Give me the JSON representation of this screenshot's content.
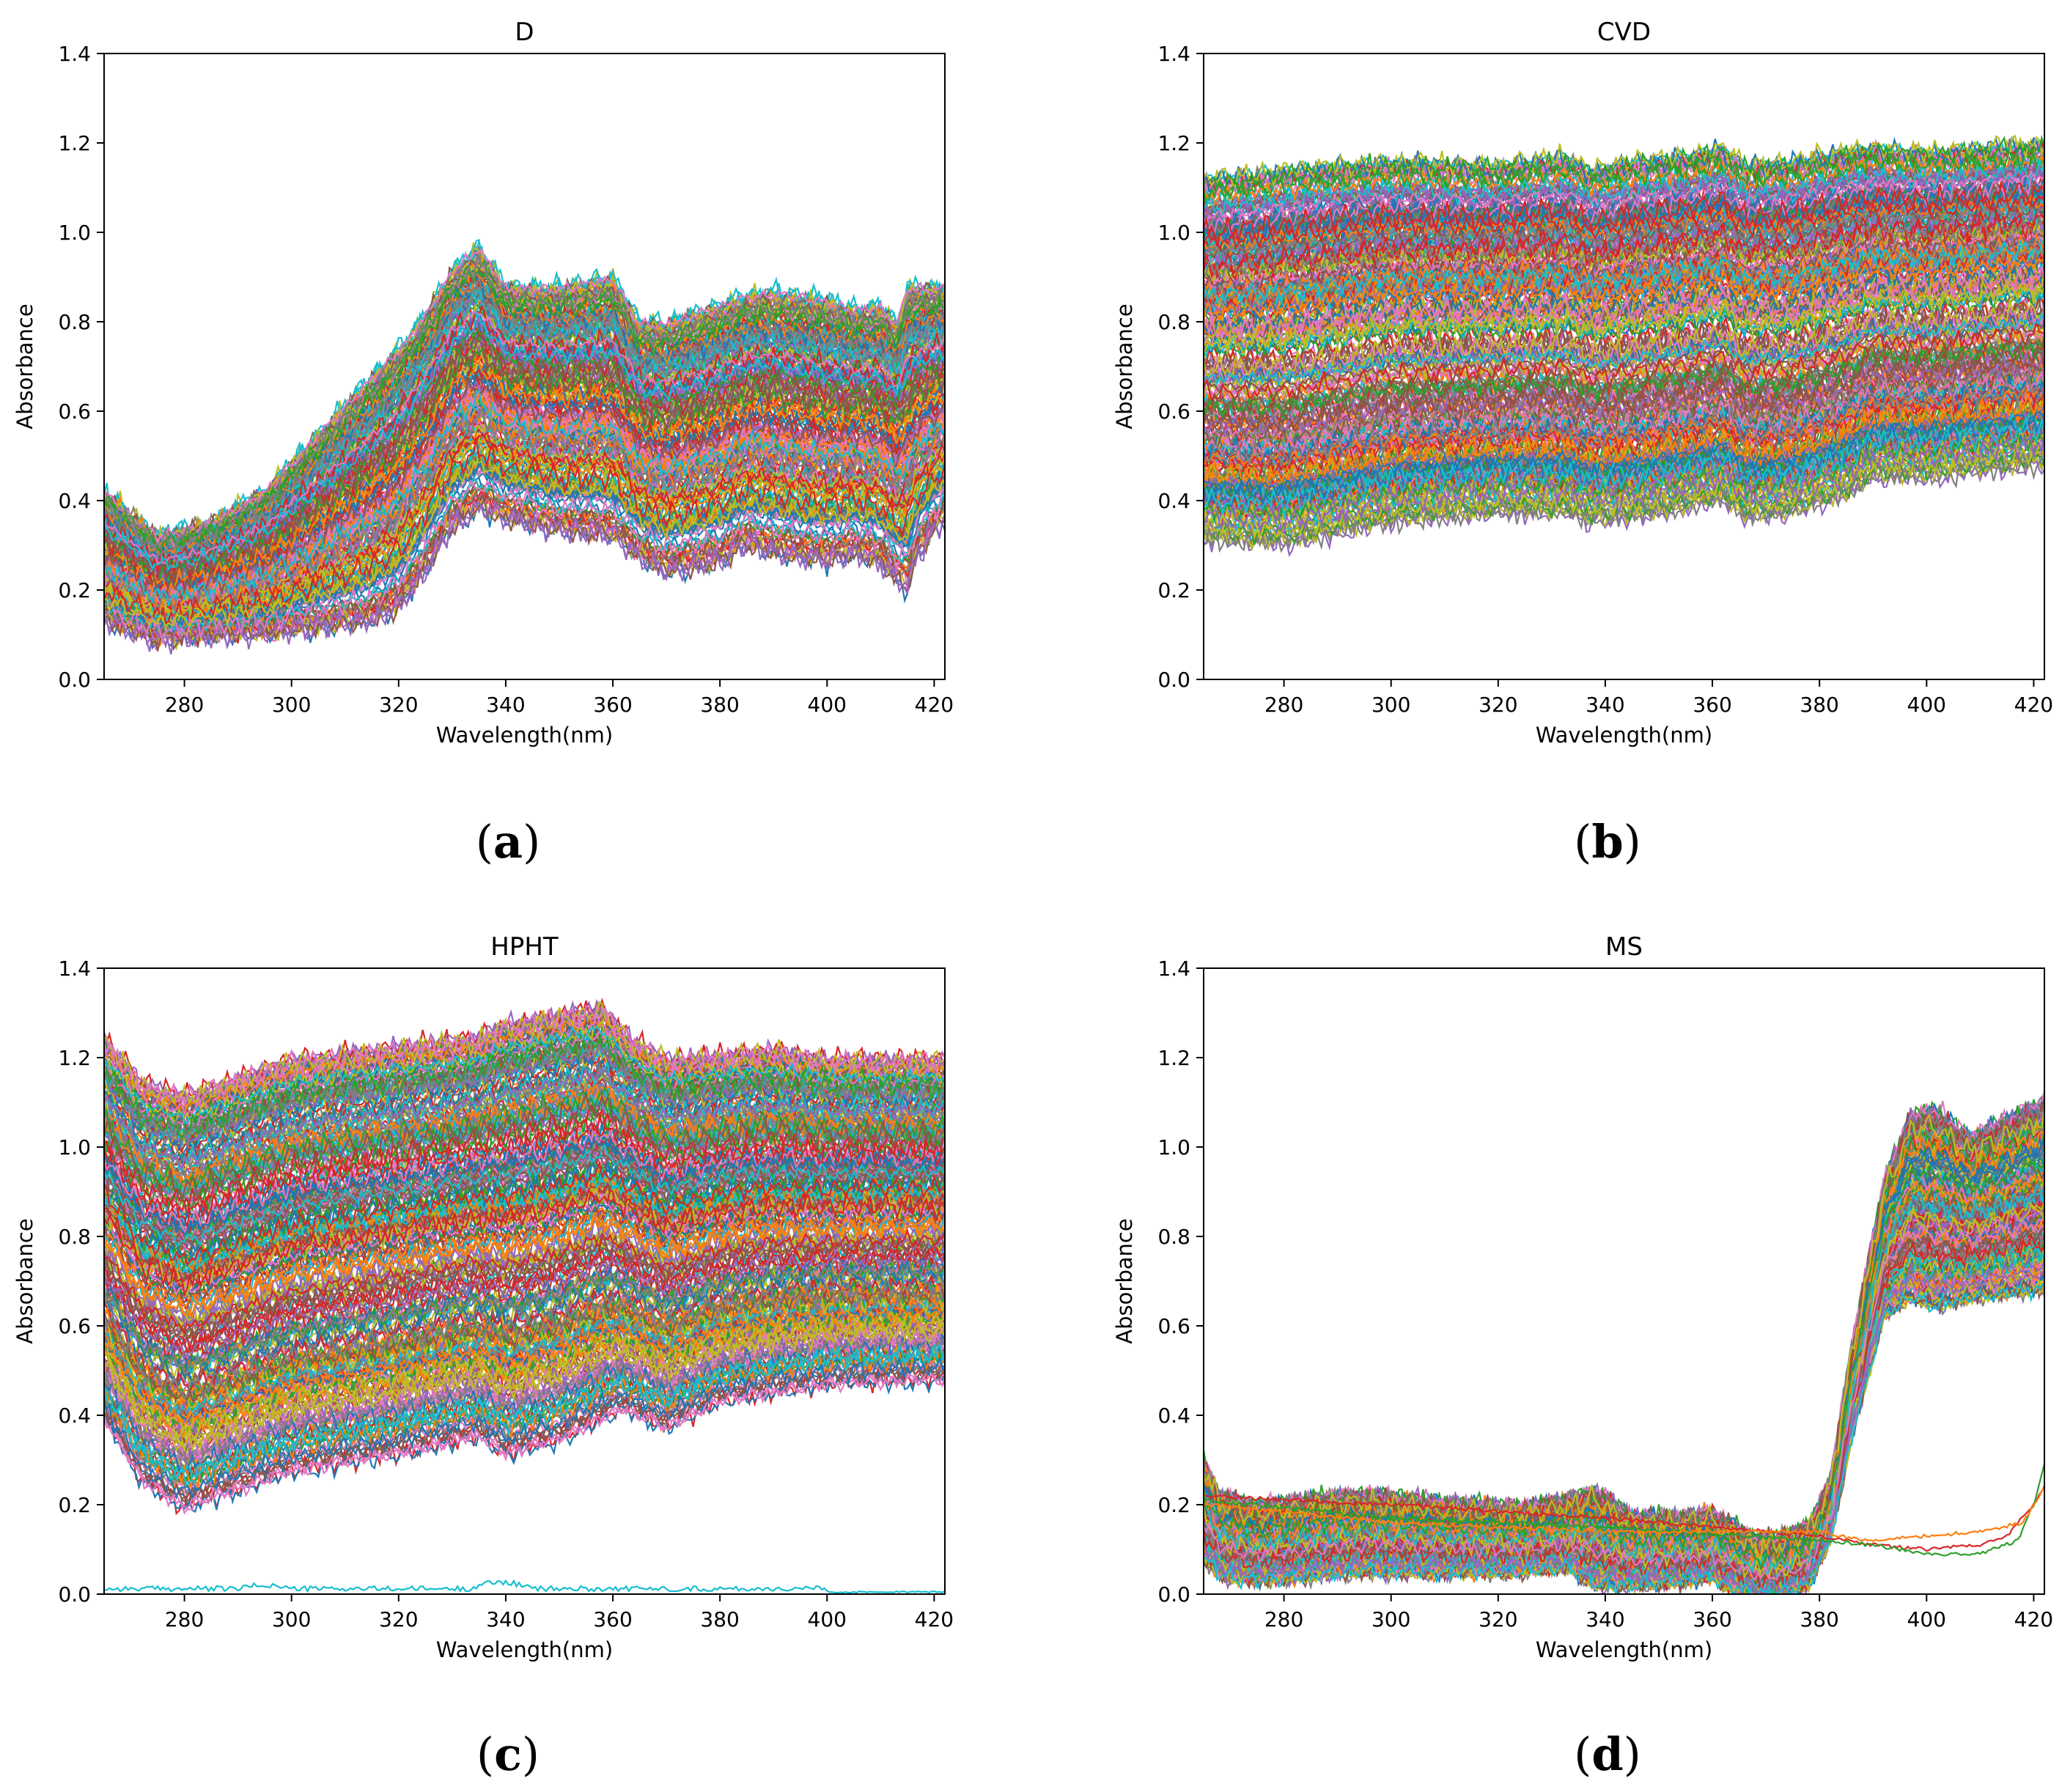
{
  "figure": {
    "colors": [
      "#1f77b4",
      "#ff7f0e",
      "#2ca02c",
      "#d62728",
      "#9467bd",
      "#8c564b",
      "#e377c2",
      "#7f7f7f",
      "#bcbd22",
      "#17becf"
    ]
  },
  "chart_data": [
    {
      "type": "line",
      "panel": "a",
      "caption_letter": "a",
      "title": "D",
      "xlabel": "Wavelength(nm)",
      "ylabel": "Absorbance",
      "xlim": [
        265,
        422
      ],
      "ylim": [
        0.0,
        1.4
      ],
      "xticks": [
        "280",
        "300",
        "320",
        "340",
        "360",
        "380",
        "400",
        "420"
      ],
      "yticks": [
        "0.0",
        "0.2",
        "0.4",
        "0.6",
        "0.8",
        "1.0",
        "1.2",
        "1.4"
      ],
      "series_count": 220,
      "profile": {
        "x": [
          265,
          275,
          285,
          295,
          305,
          315,
          320,
          325,
          330,
          335,
          340,
          350,
          360,
          365,
          370,
          380,
          385,
          390,
          400,
          405,
          410,
          413,
          415,
          417,
          422
        ],
        "low": [
          0.12,
          0.08,
          0.09,
          0.09,
          0.1,
          0.11,
          0.14,
          0.22,
          0.32,
          0.36,
          0.34,
          0.31,
          0.3,
          0.25,
          0.22,
          0.24,
          0.28,
          0.26,
          0.24,
          0.26,
          0.24,
          0.2,
          0.18,
          0.26,
          0.34
        ],
        "high": [
          0.42,
          0.32,
          0.35,
          0.42,
          0.55,
          0.68,
          0.74,
          0.82,
          0.92,
          0.97,
          0.88,
          0.88,
          0.9,
          0.8,
          0.8,
          0.84,
          0.86,
          0.87,
          0.85,
          0.83,
          0.84,
          0.8,
          0.88,
          0.88,
          0.88
        ]
      }
    },
    {
      "type": "line",
      "panel": "b",
      "caption_letter": "b",
      "title": "CVD",
      "xlabel": "Wavelength(nm)",
      "ylabel": "Absorbance",
      "xlim": [
        265,
        422
      ],
      "ylim": [
        0.0,
        1.4
      ],
      "xticks": [
        "280",
        "300",
        "320",
        "340",
        "360",
        "380",
        "400",
        "420"
      ],
      "yticks": [
        "0.0",
        "0.2",
        "0.4",
        "0.6",
        "0.8",
        "1.0",
        "1.2",
        "1.4"
      ],
      "series_count": 320,
      "profile": {
        "x": [
          265,
          280,
          300,
          320,
          333,
          337,
          345,
          355,
          362,
          366,
          375,
          385,
          390,
          400,
          422
        ],
        "low": [
          0.3,
          0.29,
          0.34,
          0.36,
          0.36,
          0.34,
          0.35,
          0.37,
          0.39,
          0.35,
          0.36,
          0.4,
          0.44,
          0.44,
          0.47
        ],
        "high": [
          1.12,
          1.14,
          1.16,
          1.15,
          1.17,
          1.14,
          1.16,
          1.17,
          1.19,
          1.15,
          1.16,
          1.18,
          1.19,
          1.18,
          1.2
        ]
      }
    },
    {
      "type": "line",
      "panel": "c",
      "caption_letter": "c",
      "title": "HPHT",
      "xlabel": "Wavelength(nm)",
      "ylabel": "Absorbance",
      "xlim": [
        265,
        422
      ],
      "ylim": [
        0.0,
        1.4
      ],
      "xticks": [
        "280",
        "300",
        "320",
        "340",
        "360",
        "380",
        "400",
        "420"
      ],
      "yticks": [
        "0.0",
        "0.2",
        "0.4",
        "0.6",
        "0.8",
        "1.0",
        "1.2",
        "1.4"
      ],
      "series_count": 300,
      "profile": {
        "x": [
          265,
          272,
          280,
          300,
          320,
          335,
          340,
          350,
          358,
          362,
          370,
          380,
          390,
          400,
          422
        ],
        "low": [
          0.38,
          0.24,
          0.18,
          0.26,
          0.3,
          0.34,
          0.3,
          0.33,
          0.38,
          0.4,
          0.36,
          0.42,
          0.44,
          0.46,
          0.47
        ],
        "high": [
          1.25,
          1.15,
          1.12,
          1.2,
          1.23,
          1.25,
          1.28,
          1.3,
          1.32,
          1.26,
          1.2,
          1.21,
          1.22,
          1.2,
          1.2
        ]
      }
    },
    {
      "type": "line",
      "panel": "d",
      "caption_letter": "d",
      "title": "MS",
      "xlabel": "Wavelength(nm)",
      "ylabel": "Absorbance",
      "xlim": [
        265,
        422
      ],
      "ylim": [
        0.0,
        1.4
      ],
      "xticks": [
        "280",
        "300",
        "320",
        "340",
        "360",
        "380",
        "400",
        "420"
      ],
      "yticks": [
        "0.0",
        "0.2",
        "0.4",
        "0.6",
        "0.8",
        "1.0",
        "1.2",
        "1.4"
      ],
      "series_count": 260,
      "profile": {
        "x": [
          265,
          268,
          275,
          285,
          295,
          310,
          325,
          333,
          338,
          345,
          355,
          360,
          362,
          368,
          372,
          378,
          382,
          386,
          392,
          397,
          402,
          408,
          415,
          422
        ],
        "low": [
          0.08,
          0.04,
          0.03,
          0.04,
          0.05,
          0.05,
          0.05,
          0.06,
          0.02,
          0.02,
          0.03,
          0.04,
          0.02,
          0.0,
          0.0,
          0.02,
          0.12,
          0.35,
          0.62,
          0.66,
          0.64,
          0.66,
          0.67,
          0.68
        ],
        "high": [
          0.3,
          0.22,
          0.19,
          0.21,
          0.22,
          0.2,
          0.19,
          0.21,
          0.23,
          0.17,
          0.17,
          0.18,
          0.16,
          0.12,
          0.12,
          0.15,
          0.25,
          0.55,
          0.92,
          1.07,
          1.08,
          1.02,
          1.06,
          1.1
        ]
      },
      "outliers": [
        {
          "x": [
            265,
            300,
            340,
            380,
            390,
            400,
            410,
            415,
            420,
            422
          ],
          "y": [
            0.22,
            0.2,
            0.17,
            0.13,
            0.11,
            0.1,
            0.11,
            0.13,
            0.2,
            0.24
          ]
        },
        {
          "x": [
            265,
            300,
            340,
            380,
            390,
            400,
            410,
            417,
            420,
            422
          ],
          "y": [
            0.21,
            0.17,
            0.15,
            0.12,
            0.11,
            0.09,
            0.09,
            0.12,
            0.2,
            0.29
          ]
        },
        {
          "x": [
            265,
            300,
            340,
            380,
            388,
            400,
            410,
            418,
            422
          ],
          "y": [
            0.2,
            0.16,
            0.14,
            0.14,
            0.12,
            0.13,
            0.14,
            0.16,
            0.24
          ]
        }
      ]
    }
  ]
}
